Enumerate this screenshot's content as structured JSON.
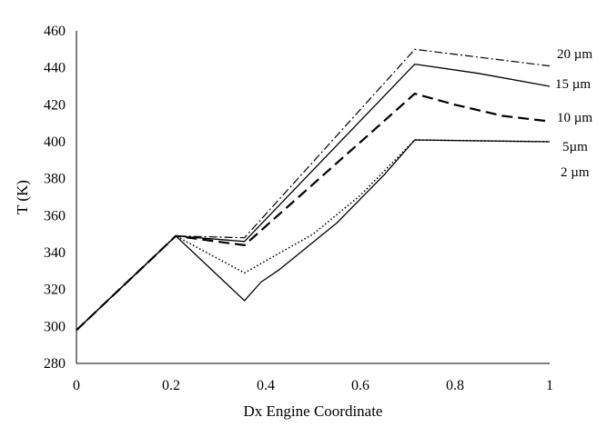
{
  "chart_data": {
    "type": "line",
    "title": "",
    "xlabel": "Dx Engine Coordinate",
    "ylabel": "T (K)",
    "xlim": [
      0,
      1
    ],
    "ylim": [
      280,
      460
    ],
    "xticks": [
      0,
      0.2,
      0.4,
      0.6,
      0.8,
      1
    ],
    "xtick_labels": [
      "0",
      "0.2",
      "0.4",
      "0.6",
      "0.8",
      "1"
    ],
    "yticks": [
      280,
      300,
      320,
      340,
      360,
      380,
      400,
      420,
      440,
      460
    ],
    "grid": false,
    "legend": "inline labels at right end of lines",
    "series": [
      {
        "name": "20 µm",
        "style": "dash-dot",
        "x": [
          0,
          0.21,
          0.355,
          0.715,
          1.0
        ],
        "y": [
          298,
          349,
          348,
          450,
          441
        ]
      },
      {
        "name": "15 µm",
        "style": "solid",
        "x": [
          0,
          0.21,
          0.355,
          0.715,
          0.85,
          1.0
        ],
        "y": [
          298,
          349,
          346,
          442,
          437,
          430
        ]
      },
      {
        "name": "10 µm",
        "style": "long-dash",
        "x": [
          0,
          0.21,
          0.355,
          0.715,
          0.8,
          0.9,
          1.0
        ],
        "y": [
          298,
          349,
          344,
          426,
          420,
          414,
          411
        ]
      },
      {
        "name": "5µm",
        "style": "dotted",
        "x": [
          0,
          0.21,
          0.355,
          0.5,
          0.6,
          0.715,
          0.85,
          1.0
        ],
        "y": [
          298,
          349,
          329,
          350,
          371,
          401,
          400.5,
          400
        ]
      },
      {
        "name": "2 µm",
        "style": "solid",
        "x": [
          0,
          0.21,
          0.355,
          0.39,
          0.43,
          0.55,
          0.65,
          0.715,
          0.85,
          1.0
        ],
        "y": [
          298,
          349,
          314,
          324,
          331,
          356,
          382,
          401,
          400.5,
          400
        ]
      }
    ],
    "series_labels": [
      "20 µm",
      "15 µm",
      "10 µm",
      "5µm",
      "2 µm"
    ]
  },
  "colors": {
    "line": "#000000",
    "axis": "#000000",
    "background": "#ffffff"
  }
}
